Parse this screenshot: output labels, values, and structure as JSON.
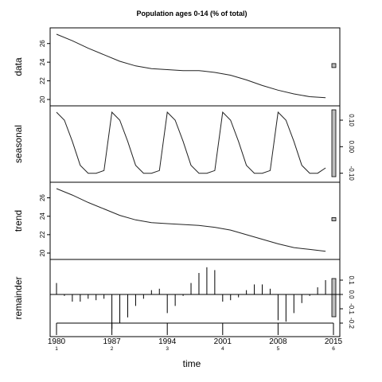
{
  "chart_data": {
    "type": "line",
    "title": "Population ages 0-14 (% of total)",
    "xlabel": "time",
    "x_ticks": [
      "1980",
      "1987",
      "1994",
      "2001",
      "2008",
      "2015"
    ],
    "x_minor": [
      "1",
      "2",
      "3",
      "4",
      "5",
      "6"
    ],
    "xlim": [
      1980,
      2015
    ],
    "panels": [
      {
        "name": "data",
        "ylabel": "data",
        "ylim": [
          20,
          27
        ],
        "yticks": [
          "20",
          "22",
          "24",
          "26"
        ],
        "right_ticks": [],
        "x": [
          1980,
          1982,
          1984,
          1986,
          1988,
          1990,
          1992,
          1994,
          1996,
          1998,
          2000,
          2002,
          2004,
          2006,
          2008,
          2010,
          2012,
          2014
        ],
        "values": [
          27.0,
          26.3,
          25.5,
          24.8,
          24.1,
          23.6,
          23.3,
          23.2,
          23.1,
          23.1,
          22.9,
          22.6,
          22.1,
          21.5,
          21.0,
          20.6,
          20.3,
          20.2
        ]
      },
      {
        "name": "seasonal",
        "ylabel": "seasonal",
        "ylim": [
          -0.11,
          0.13
        ],
        "yticks": [],
        "right_ticks": [
          "0.10",
          "0.00",
          "-0.10"
        ],
        "x": [
          1980,
          1981,
          1982,
          1983,
          1984,
          1985,
          1986,
          1987,
          1988,
          1989,
          1990,
          1991,
          1992,
          1993,
          1994,
          1995,
          1996,
          1997,
          1998,
          1999,
          2000,
          2001,
          2002,
          2003,
          2004,
          2005,
          2006,
          2007,
          2008,
          2009,
          2010,
          2011,
          2012,
          2013,
          2014
        ],
        "values": [
          0.13,
          0.1,
          0.02,
          -0.07,
          -0.1,
          -0.1,
          -0.09,
          0.13,
          0.1,
          0.02,
          -0.07,
          -0.1,
          -0.1,
          -0.09,
          0.13,
          0.1,
          0.02,
          -0.07,
          -0.1,
          -0.1,
          -0.09,
          0.13,
          0.1,
          0.02,
          -0.07,
          -0.1,
          -0.1,
          -0.09,
          0.13,
          0.1,
          0.02,
          -0.07,
          -0.1,
          -0.1,
          -0.08
        ]
      },
      {
        "name": "trend",
        "ylabel": "trend",
        "ylim": [
          20,
          27
        ],
        "yticks": [
          "20",
          "22",
          "24",
          "26"
        ],
        "right_ticks": [],
        "x": [
          1980,
          1982,
          1984,
          1986,
          1988,
          1990,
          1992,
          1994,
          1996,
          1998,
          2000,
          2002,
          2004,
          2006,
          2008,
          2010,
          2012,
          2014
        ],
        "values": [
          27.0,
          26.3,
          25.5,
          24.8,
          24.1,
          23.6,
          23.3,
          23.2,
          23.1,
          23.0,
          22.8,
          22.5,
          22.0,
          21.5,
          21.0,
          20.6,
          20.4,
          20.2
        ]
      },
      {
        "name": "remainder",
        "ylabel": "remainder",
        "ylim": [
          -0.25,
          0.2
        ],
        "yticks": [],
        "right_ticks": [
          "0.1",
          "0.0",
          "-0.1",
          "-0.2"
        ],
        "type": "spikes",
        "x": [
          1980,
          1981,
          1982,
          1983,
          1984,
          1985,
          1986,
          1987,
          1988,
          1989,
          1990,
          1991,
          1992,
          1993,
          1994,
          1995,
          1996,
          1997,
          1998,
          1999,
          2000,
          2001,
          2002,
          2003,
          2004,
          2005,
          2006,
          2007,
          2008,
          2009,
          2010,
          2011,
          2012,
          2013,
          2014
        ],
        "values": [
          0.08,
          -0.01,
          -0.05,
          -0.05,
          -0.03,
          -0.04,
          -0.03,
          -0.24,
          -0.2,
          -0.16,
          -0.08,
          -0.03,
          0.03,
          0.04,
          -0.13,
          -0.08,
          -0.01,
          0.08,
          0.15,
          0.19,
          0.17,
          -0.05,
          -0.04,
          -0.02,
          0.03,
          0.07,
          0.07,
          0.04,
          -0.18,
          -0.19,
          -0.13,
          -0.06,
          -0.01,
          0.05,
          0.1
        ]
      }
    ]
  }
}
